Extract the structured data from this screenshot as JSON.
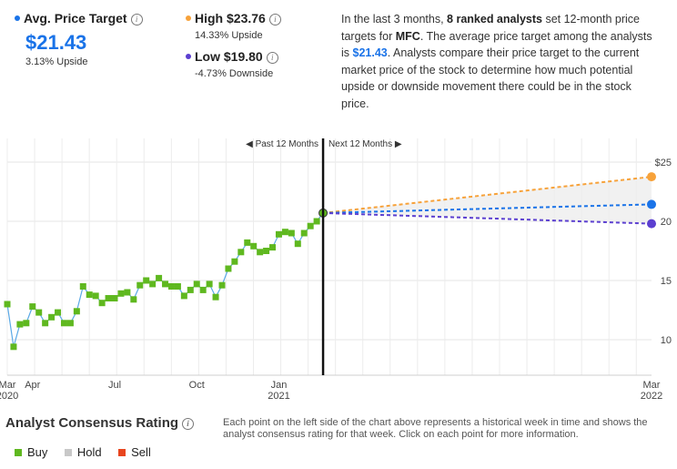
{
  "summary": {
    "avg": {
      "label": "Avg. Price Target",
      "value": "$21.43",
      "sub": "3.13% Upside",
      "color": "#1a73e8"
    },
    "high": {
      "label": "High $23.76",
      "sub": "14.33% Upside",
      "color": "#f7a23a"
    },
    "low": {
      "label": "Low $19.80",
      "sub": "-4.73% Downside",
      "color": "#5b3fd0"
    },
    "description": {
      "part1": "In the last 3 months, ",
      "bold1": "8 ranked analysts",
      "part2": " set 12-month price targets for ",
      "bold2": "MFC",
      "part3": ". The average price target among the analysts is ",
      "price": "$21.43",
      "part4": ". Analysts compare their price target to the current market price of the stock to determine how much potential upside or downside movement there could be in the stock price."
    }
  },
  "chart_data": {
    "type": "line",
    "past_label": "Past 12 Months",
    "next_label": "Next 12 Months",
    "y_ticks": [
      "$25",
      "20",
      "15",
      "10"
    ],
    "y_tick_values": [
      25,
      20,
      15,
      10
    ],
    "ylim": [
      7,
      27
    ],
    "x_tick_labels": [
      {
        "label": "Mar",
        "sub": "2020",
        "x": 0
      },
      {
        "label": "Apr",
        "sub": "",
        "x": 4
      },
      {
        "label": "Jul",
        "sub": "",
        "x": 17
      },
      {
        "label": "Oct",
        "sub": "",
        "x": 30
      },
      {
        "label": "Jan",
        "sub": "2021",
        "x": 43
      },
      {
        "label": "Mar",
        "sub": "2022",
        "x": 102
      }
    ],
    "x_range": [
      0,
      102
    ],
    "today_x": 50,
    "history": {
      "name": "Price",
      "x": [
        0,
        1,
        2,
        3,
        4,
        5,
        6,
        7,
        8,
        9,
        10,
        11,
        12,
        13,
        14,
        15,
        16,
        17,
        18,
        19,
        20,
        21,
        22,
        23,
        24,
        25,
        26,
        27,
        28,
        29,
        30,
        31,
        32,
        33,
        34,
        35,
        36,
        37,
        38,
        39,
        40,
        41,
        42,
        43,
        44,
        45,
        46,
        47,
        48,
        49,
        50
      ],
      "y": [
        13.0,
        9.4,
        11.3,
        11.4,
        12.8,
        12.3,
        11.4,
        11.9,
        12.3,
        11.4,
        11.4,
        12.4,
        14.5,
        13.8,
        13.7,
        13.1,
        13.5,
        13.5,
        13.9,
        14.0,
        13.4,
        14.6,
        15.0,
        14.7,
        15.2,
        14.7,
        14.5,
        14.5,
        13.7,
        14.2,
        14.7,
        14.2,
        14.7,
        13.6,
        14.6,
        16.0,
        16.6,
        17.4,
        18.2,
        17.9,
        17.4,
        17.5,
        17.8,
        18.9,
        19.1,
        19.0,
        18.1,
        19.0,
        19.6,
        20.0,
        20.7
      ],
      "color": "#5fb81f"
    },
    "projections": [
      {
        "name": "High",
        "from": 20.7,
        "to": 23.76,
        "color": "#f7a23a"
      },
      {
        "name": "Average",
        "from": 20.7,
        "to": 21.43,
        "color": "#1a73e8"
      },
      {
        "name": "Low",
        "from": 20.7,
        "to": 19.8,
        "color": "#5b3fd0"
      }
    ]
  },
  "consensus": {
    "title": "Analyst Consensus Rating",
    "description": "Each point on the left side of the chart above represents a historical week in time and shows the analyst consensus rating for that week. Click on each point for more information.",
    "legend": [
      {
        "label": "Buy",
        "color": "#5fb81f"
      },
      {
        "label": "Hold",
        "color": "#c8c8c8"
      },
      {
        "label": "Sell",
        "color": "#e8451e"
      }
    ]
  }
}
